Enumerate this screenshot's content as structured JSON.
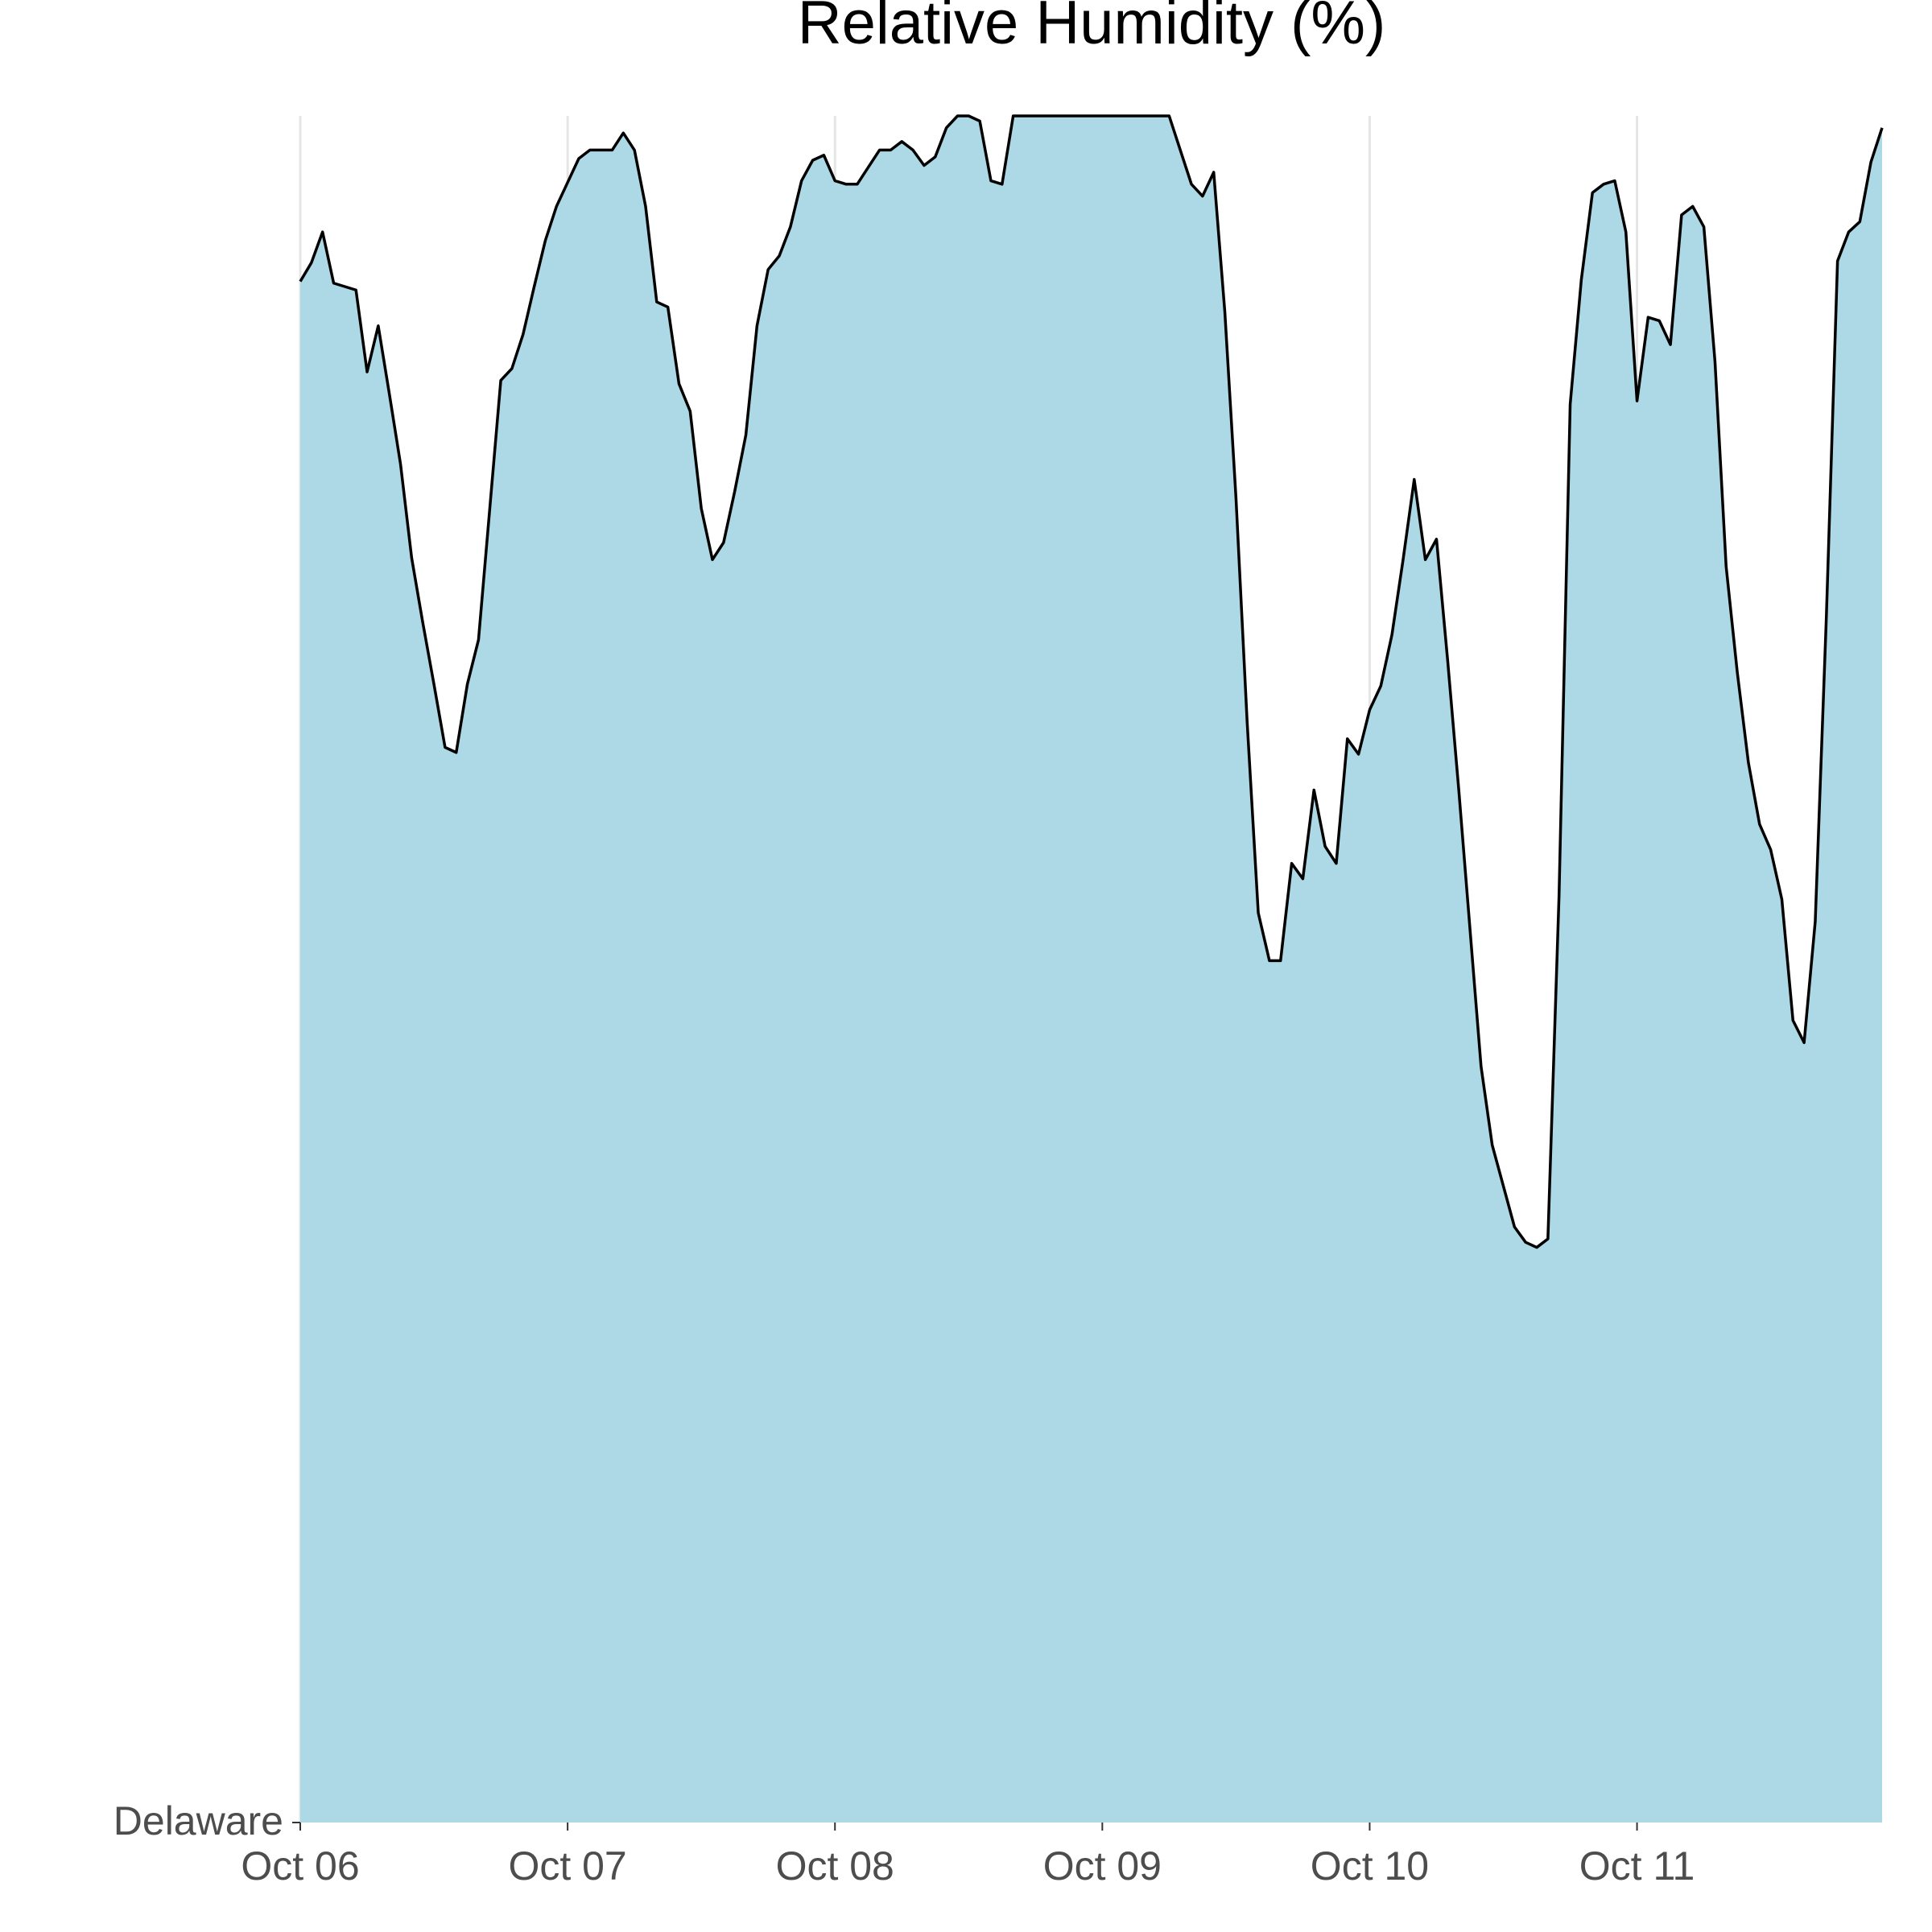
{
  "chart_data": {
    "type": "area",
    "title": "Relative Humidity (%)",
    "x": [
      0,
      1,
      2,
      3,
      4,
      5,
      6,
      7,
      8,
      9,
      10,
      11,
      12,
      13,
      14,
      15,
      16,
      17,
      18,
      19,
      20,
      21,
      22,
      23,
      24,
      25,
      26,
      27,
      28,
      29,
      30,
      31,
      32,
      33,
      34,
      35,
      36,
      37,
      38,
      39,
      40,
      41,
      42,
      43,
      44,
      45,
      46,
      47,
      48,
      49,
      50,
      51,
      52,
      53,
      54,
      55,
      56,
      57,
      58,
      59,
      60,
      61,
      62,
      63,
      64,
      65,
      66,
      67,
      68,
      69,
      70,
      71,
      72,
      73,
      74,
      75,
      76,
      77,
      78,
      79,
      80,
      81,
      82,
      83,
      84,
      85,
      86,
      87,
      88,
      89,
      90,
      91,
      92,
      93,
      94,
      95,
      96,
      97,
      98,
      99,
      100,
      101,
      102,
      103,
      104,
      105,
      106,
      107,
      108,
      109,
      110,
      111,
      112,
      113,
      114,
      115,
      116,
      117,
      118,
      119,
      120,
      121,
      122,
      123,
      124,
      125,
      126,
      127,
      128,
      129,
      130,
      131,
      132,
      133,
      134,
      135,
      136,
      137,
      138,
      139,
      140,
      141,
      142
    ],
    "series": [
      {
        "name": "Delaware",
        "color": "#add8e6",
        "values": [
          90.3,
          91.4,
          93.2,
          90.2,
          90,
          89.8,
          85,
          87.7,
          83.7,
          79.6,
          74.1,
          70.3,
          66.7,
          63,
          62.7,
          66.7,
          69.3,
          76.9,
          84.5,
          85.2,
          87.2,
          90,
          92.7,
          94.7,
          96.1,
          97.5,
          98,
          98,
          98,
          99,
          98,
          94.7,
          89.1,
          88.8,
          84.3,
          82.7,
          77,
          74,
          75,
          78,
          81.3,
          87.7,
          91,
          91.8,
          93.5,
          96.2,
          97.4,
          97.7,
          96.2,
          96,
          96,
          97,
          98,
          98,
          98.5,
          98,
          97.1,
          97.6,
          99.3,
          100,
          100,
          99.7,
          96.2,
          96,
          100,
          100,
          100,
          100,
          100,
          100,
          100,
          100,
          100,
          100,
          100,
          100,
          100,
          100,
          100,
          98,
          96,
          95.3,
          96.7,
          88.5,
          77.6,
          64.5,
          53.3,
          50.5,
          50.5,
          56.2,
          55.3,
          60.5,
          57.2,
          56.2,
          63.5,
          62.6,
          65.2,
          66.6,
          69.6,
          74,
          78.7,
          74,
          75.2,
          68.1,
          60.5,
          52.4,
          44.3,
          39.7,
          37.3,
          34.9,
          34,
          33.7,
          34.2,
          54.3,
          83.1,
          90.4,
          95.5,
          96,
          96.2,
          93.2,
          83.3,
          88.2,
          88,
          86.6,
          94.2,
          94.7,
          93.5,
          85.6,
          73.6,
          67.4,
          62.1,
          58.5,
          57,
          54.1,
          47,
          45.7,
          52.8,
          70.7,
          91.5,
          93.2,
          93.8,
          97.3,
          99.3
        ]
      }
    ],
    "xlim": [
      0,
      142
    ],
    "xticks": [
      {
        "value": 0,
        "label": "Oct 06"
      },
      {
        "value": 24,
        "label": "Oct 07"
      },
      {
        "value": 48,
        "label": "Oct 08"
      },
      {
        "value": 72,
        "label": "Oct 09"
      },
      {
        "value": 96,
        "label": "Oct 10"
      },
      {
        "value": 120,
        "label": "Oct 11"
      }
    ],
    "ylim": [
      0,
      100
    ],
    "grid": true,
    "line_color": "#000000"
  }
}
